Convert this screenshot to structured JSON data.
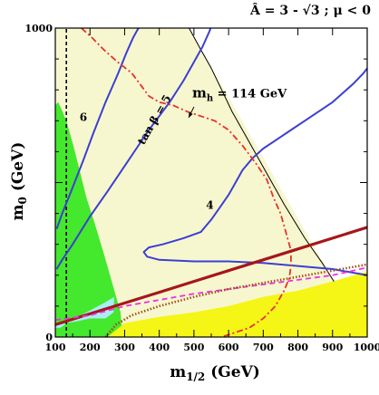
{
  "chart_data": {
    "type": "line",
    "title": "Â = 3 - √3 ; μ < 0",
    "xlabel": "m",
    "xlabel_sub": "1/2",
    "xlabel_unit": " (GeV)",
    "ylabel": "m",
    "ylabel_sub": "0",
    "ylabel_unit": " (GeV)",
    "xlim": [
      100,
      1000
    ],
    "ylim": [
      0,
      1000
    ],
    "xticks": [
      100,
      200,
      300,
      400,
      500,
      600,
      700,
      800,
      900,
      1000
    ],
    "yticks": [
      0,
      1000
    ],
    "colors": {
      "bg": "#ffffff",
      "allowed": "#f7f7cf",
      "green": "#44e82d",
      "cyan": "#a9eef5",
      "yellow": "#f5f516",
      "blue": "#3b3fd2",
      "red": "#e8322c",
      "darkred": "#a6161b",
      "magenta": "#ef30e7",
      "brown": "#9b5218",
      "black": "#000000"
    },
    "regions": [
      {
        "name": "allowed",
        "points": [
          [
            100,
            1000
          ],
          [
            486,
            1000
          ],
          [
            904,
            180
          ],
          [
            1000,
            220
          ],
          [
            1000,
            0
          ],
          [
            100,
            0
          ]
        ]
      },
      {
        "name": "green",
        "points": [
          [
            100,
            750
          ],
          [
            108,
            760
          ],
          [
            115,
            745
          ],
          [
            132,
            700
          ],
          [
            152,
            620
          ],
          [
            170,
            540
          ],
          [
            190,
            450
          ],
          [
            213,
            370
          ],
          [
            240,
            270
          ],
          [
            268,
            160
          ],
          [
            288,
            80
          ],
          [
            295,
            0
          ],
          [
            100,
            0
          ]
        ]
      },
      {
        "name": "cyan",
        "points": [
          [
            100,
            30
          ],
          [
            115,
            30
          ],
          [
            140,
            50
          ],
          [
            190,
            80
          ],
          [
            240,
            110
          ],
          [
            270,
            130
          ],
          [
            268,
            80
          ],
          [
            245,
            60
          ],
          [
            200,
            60
          ],
          [
            160,
            50
          ],
          [
            100,
            40
          ]
        ]
      },
      {
        "name": "yellow",
        "points": [
          [
            250,
            0
          ],
          [
            300,
            45
          ],
          [
            400,
            65
          ],
          [
            500,
            80
          ],
          [
            600,
            100
          ],
          [
            700,
            130
          ],
          [
            800,
            150
          ],
          [
            900,
            180
          ],
          [
            1000,
            210
          ],
          [
            1000,
            0
          ]
        ]
      }
    ],
    "series": [
      {
        "style": "black-thin",
        "points": [
          [
            486,
            1000
          ],
          [
            520,
            930
          ],
          [
            550,
            870
          ],
          [
            580,
            800
          ],
          [
            610,
            730
          ],
          [
            650,
            650
          ],
          [
            700,
            550
          ],
          [
            760,
            430
          ],
          [
            820,
            320
          ],
          [
            870,
            240
          ],
          [
            904,
            180
          ]
        ]
      },
      {
        "style": "black-dashed",
        "points": [
          [
            132,
            0
          ],
          [
            132,
            1000
          ]
        ]
      },
      {
        "style": "blue",
        "points": [
          [
            104,
            350
          ],
          [
            120,
            400
          ],
          [
            145,
            470
          ],
          [
            180,
            570
          ],
          [
            210,
            660
          ],
          [
            245,
            760
          ],
          [
            280,
            850
          ],
          [
            305,
            920
          ],
          [
            325,
            970
          ],
          [
            340,
            1000
          ]
        ]
      },
      {
        "style": "blue",
        "points": [
          [
            104,
            220
          ],
          [
            120,
            250
          ],
          [
            150,
            300
          ],
          [
            200,
            390
          ],
          [
            250,
            470
          ],
          [
            310,
            570
          ],
          [
            370,
            670
          ],
          [
            430,
            760
          ],
          [
            470,
            830
          ],
          [
            500,
            890
          ],
          [
            525,
            940
          ],
          [
            545,
            990
          ],
          [
            548,
            1000
          ]
        ]
      },
      {
        "style": "blue",
        "points": [
          [
            1000,
            870
          ],
          [
            990,
            855
          ],
          [
            960,
            820
          ],
          [
            930,
            790
          ],
          [
            900,
            760
          ],
          [
            860,
            730
          ],
          [
            820,
            700
          ],
          [
            780,
            670
          ],
          [
            740,
            640
          ],
          [
            700,
            610
          ],
          [
            670,
            580
          ],
          [
            640,
            540
          ],
          [
            620,
            500
          ],
          [
            600,
            460
          ],
          [
            575,
            420
          ],
          [
            550,
            380
          ],
          [
            520,
            340
          ],
          [
            470,
            320
          ],
          [
            410,
            300
          ],
          [
            370,
            290
          ],
          [
            355,
            275
          ],
          [
            365,
            260
          ],
          [
            400,
            250
          ],
          [
            500,
            245
          ],
          [
            600,
            245
          ],
          [
            700,
            240
          ],
          [
            800,
            230
          ],
          [
            900,
            220
          ],
          [
            1000,
            200
          ]
        ]
      },
      {
        "style": "red-dashdot",
        "points": [
          [
            175,
            1000
          ],
          [
            205,
            970
          ],
          [
            240,
            930
          ],
          [
            280,
            890
          ],
          [
            320,
            855
          ],
          [
            350,
            810
          ],
          [
            370,
            780
          ],
          [
            400,
            760
          ],
          [
            440,
            750
          ],
          [
            480,
            730
          ],
          [
            520,
            715
          ],
          [
            560,
            700
          ],
          [
            600,
            670
          ],
          [
            640,
            620
          ],
          [
            680,
            560
          ],
          [
            710,
            510
          ],
          [
            730,
            450
          ],
          [
            750,
            400
          ],
          [
            760,
            360
          ],
          [
            770,
            320
          ],
          [
            780,
            280
          ],
          [
            780,
            230
          ],
          [
            775,
            190
          ],
          [
            760,
            150
          ],
          [
            735,
            100
          ],
          [
            700,
            60
          ],
          [
            660,
            30
          ],
          [
            620,
            15
          ],
          [
            580,
            0
          ]
        ]
      },
      {
        "style": "darkred",
        "points": [
          [
            100,
            40
          ],
          [
            200,
            75
          ],
          [
            300,
            110
          ],
          [
            400,
            145
          ],
          [
            500,
            180
          ],
          [
            600,
            215
          ],
          [
            700,
            250
          ],
          [
            800,
            285
          ],
          [
            900,
            320
          ],
          [
            1000,
            355
          ]
        ]
      },
      {
        "style": "magenta-dashed",
        "points": [
          [
            100,
            55
          ],
          [
            200,
            70
          ],
          [
            300,
            100
          ],
          [
            400,
            120
          ],
          [
            500,
            140
          ],
          [
            600,
            155
          ],
          [
            700,
            170
          ],
          [
            800,
            185
          ],
          [
            900,
            200
          ],
          [
            1000,
            225
          ]
        ]
      },
      {
        "style": "brown-dotted",
        "points": [
          [
            245,
            0
          ],
          [
            275,
            40
          ],
          [
            320,
            70
          ],
          [
            400,
            100
          ],
          [
            500,
            130
          ],
          [
            600,
            155
          ],
          [
            700,
            175
          ],
          [
            800,
            195
          ],
          [
            900,
            215
          ],
          [
            1000,
            235
          ]
        ]
      }
    ],
    "annotations": [
      {
        "text": "6",
        "x": 170,
        "y": 700
      },
      {
        "text": "tan β = 5",
        "x": 355,
        "y": 620,
        "rotate": -60
      },
      {
        "text": "4",
        "x": 535,
        "y": 415
      },
      {
        "text": "m",
        "sub": "h",
        "rest": " = 114 GeV",
        "x": 495,
        "y": 775
      }
    ],
    "arrow": {
      "from": [
        500,
        745
      ],
      "to": [
        485,
        710
      ]
    }
  }
}
